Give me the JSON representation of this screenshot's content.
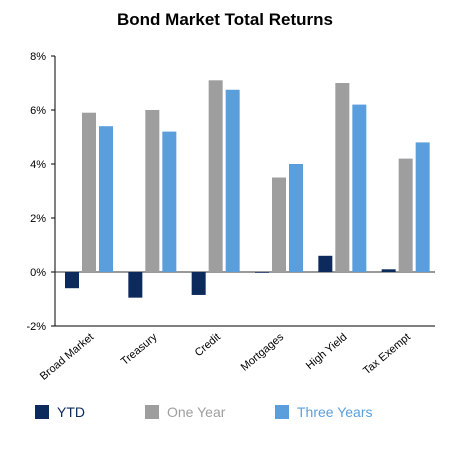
{
  "chart_data": {
    "type": "bar",
    "title": "Bond Market Total Returns",
    "xlabel": "",
    "ylabel": "",
    "categories": [
      "Broad Market",
      "Treasury",
      "Credit",
      "Mortgages",
      "High Yield",
      "Tax Exempt"
    ],
    "series": [
      {
        "name": "YTD",
        "color": "#0d2a5c",
        "values": [
          -0.6,
          -0.95,
          -0.85,
          0.0,
          0.6,
          0.1
        ]
      },
      {
        "name": "One Year",
        "color": "#9e9e9e",
        "values": [
          5.9,
          6.0,
          7.1,
          3.5,
          7.0,
          4.2
        ]
      },
      {
        "name": "Three Years",
        "color": "#5a9fdc",
        "values": [
          5.4,
          5.2,
          6.75,
          4.0,
          6.2,
          4.8
        ]
      }
    ],
    "ylim": [
      -2,
      8
    ],
    "yticks": [
      "-2%",
      "0%",
      "2%",
      "4%",
      "6%",
      "8%"
    ],
    "ytick_values": [
      -2,
      0,
      2,
      4,
      6,
      8
    ],
    "legend_position": "bottom",
    "grid": false
  }
}
